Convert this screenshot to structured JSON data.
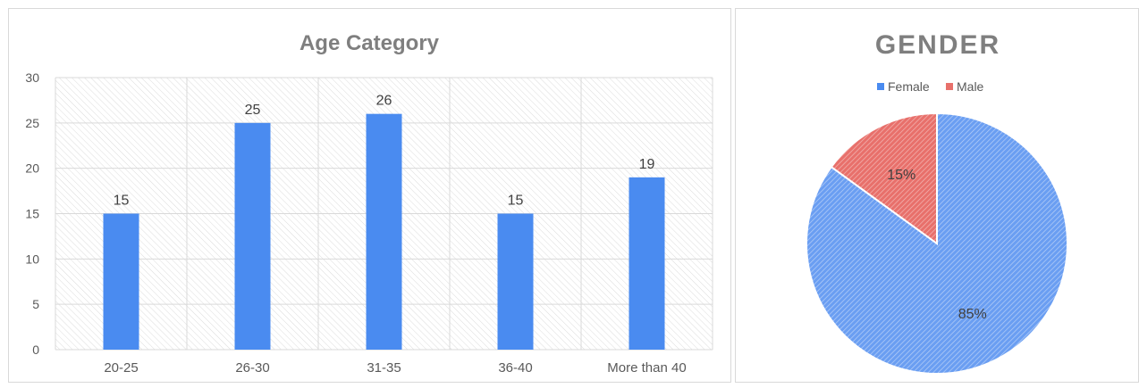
{
  "chart_data": [
    {
      "type": "bar",
      "title": "Age Category",
      "categories": [
        "20-25",
        "26-30",
        "31-35",
        "36-40",
        "More than 40"
      ],
      "values": [
        15,
        25,
        26,
        15,
        19
      ],
      "data_labels": [
        "15",
        "25",
        "26",
        "15",
        "19"
      ],
      "yticks": [
        "0",
        "5",
        "10",
        "15",
        "20",
        "25",
        "30"
      ],
      "ylim": [
        0,
        30
      ],
      "grid": true,
      "legend": "none",
      "colors": {
        "bar": "#4a8bf0",
        "title": "#7f7f7f",
        "axis_text": "#595959"
      }
    },
    {
      "type": "pie",
      "title": "GENDER",
      "legend_placement": "top",
      "slices": [
        {
          "label": "Female",
          "value": 85,
          "display": "85%",
          "color": "#4a8bf0"
        },
        {
          "label": "Male",
          "value": 15,
          "display": "15%",
          "color": "#e8706b"
        }
      ]
    }
  ]
}
